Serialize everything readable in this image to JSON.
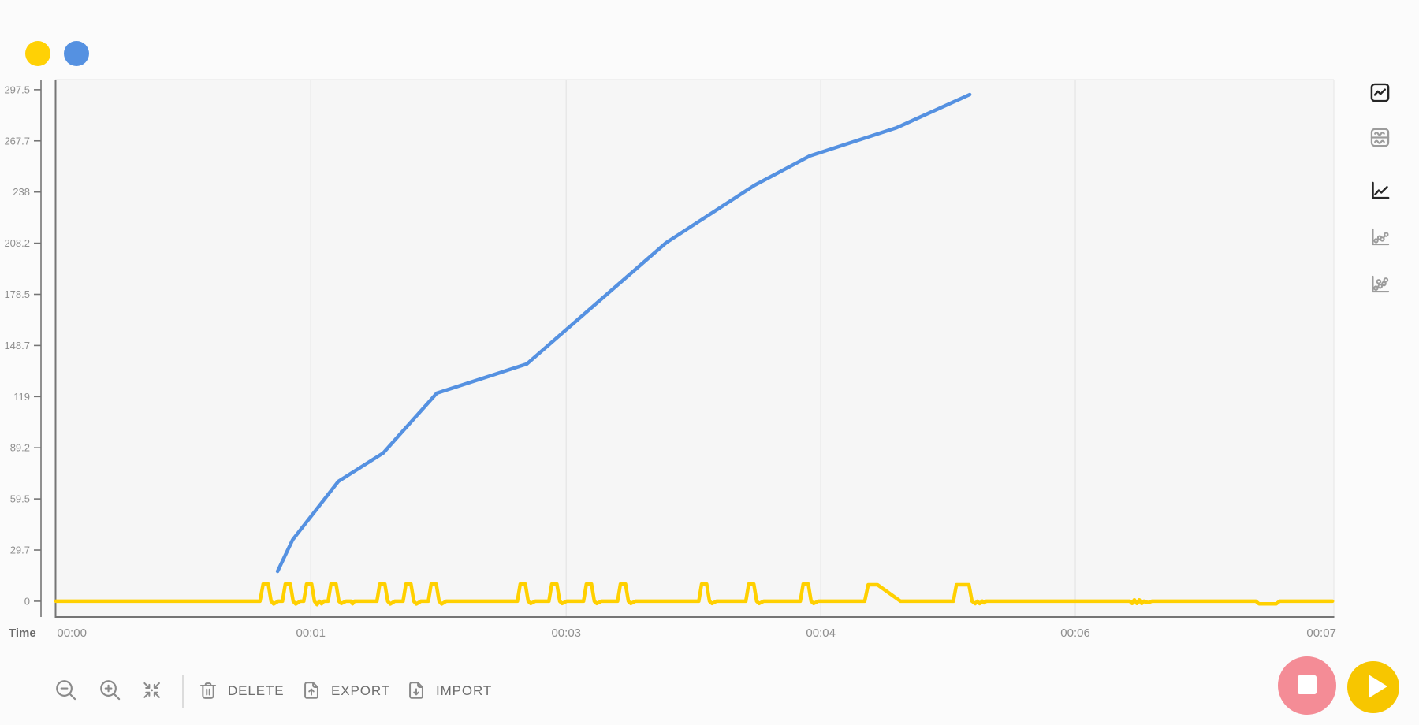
{
  "app": {
    "background": "#fbfbfb",
    "plot_background": "#f6f6f6",
    "gridline_color": "#e8e8e8",
    "axis_dark_color": "#757575",
    "axis_light_color": "#ececec",
    "tick_text_color": "#8e8e8e"
  },
  "legend": {
    "series": [
      {
        "id": "yellow-series",
        "color": "#ffd105"
      },
      {
        "id": "blue-series",
        "color": "#5591e1"
      }
    ]
  },
  "chart_data": {
    "type": "line",
    "title": "",
    "xlabel": "Time",
    "ylabel": "",
    "grid": "vertical-only",
    "x_tick_labels": [
      "00:00",
      "00:01",
      "00:03",
      "00:04",
      "00:06",
      "00:07"
    ],
    "x_tick_t": [
      0,
      84.2,
      174.2,
      263.9,
      353.6,
      440.3
    ],
    "gridline_t": [
      84.2,
      174.2,
      263.9,
      353.6
    ],
    "y_tick_labels": [
      "0",
      "29.7",
      "59.5",
      "89.2",
      "119",
      "148.7",
      "178.5",
      "208.2",
      "238",
      "267.7",
      "297.5"
    ],
    "y_tick_values": [
      0,
      29.75,
      59.5,
      89.25,
      119,
      148.75,
      178.5,
      208.25,
      238,
      267.75,
      297.5
    ],
    "x_range_s": [
      -5.6,
      444.7
    ],
    "y_range": [
      -9.2,
      303.4
    ],
    "series": [
      {
        "name": "yellow-sensor",
        "color": "#ffd000",
        "points": [
          [
            -5.6,
            0
          ],
          [
            66.3,
            0
          ],
          [
            67.4,
            10
          ],
          [
            69.2,
            10
          ],
          [
            70.2,
            0
          ],
          [
            71.1,
            -1.6
          ],
          [
            72.7,
            0
          ],
          [
            74.2,
            0
          ],
          [
            75.2,
            10
          ],
          [
            77.0,
            10
          ],
          [
            78.0,
            0
          ],
          [
            78.9,
            -1.6
          ],
          [
            80.5,
            0
          ],
          [
            81.7,
            0
          ],
          [
            82.7,
            10
          ],
          [
            84.5,
            10
          ],
          [
            85.5,
            0
          ],
          [
            86.4,
            -2
          ],
          [
            87.2,
            0
          ],
          [
            88.0,
            -1.5
          ],
          [
            88.8,
            0
          ],
          [
            90.3,
            0
          ],
          [
            91.3,
            10
          ],
          [
            93.1,
            10
          ],
          [
            94.1,
            0
          ],
          [
            95.0,
            -1.3
          ],
          [
            96.6,
            0
          ],
          [
            98.4,
            0
          ],
          [
            98.9,
            -1.5
          ],
          [
            99.6,
            0
          ],
          [
            107.5,
            0
          ],
          [
            108.5,
            10
          ],
          [
            110.3,
            10
          ],
          [
            111.3,
            0
          ],
          [
            112.2,
            -1.6
          ],
          [
            113.8,
            0
          ],
          [
            116.7,
            0
          ],
          [
            117.7,
            10
          ],
          [
            119.5,
            10
          ],
          [
            120.5,
            0
          ],
          [
            121.4,
            -1.6
          ],
          [
            123.0,
            0
          ],
          [
            125.6,
            0
          ],
          [
            126.6,
            10
          ],
          [
            128.4,
            10
          ],
          [
            129.4,
            0
          ],
          [
            130.3,
            -1.6
          ],
          [
            131.9,
            0
          ],
          [
            157.0,
            0
          ],
          [
            158.0,
            10
          ],
          [
            159.8,
            10
          ],
          [
            160.8,
            0
          ],
          [
            161.7,
            -1.3
          ],
          [
            163.3,
            0
          ],
          [
            168.1,
            0
          ],
          [
            169.1,
            10
          ],
          [
            170.9,
            10
          ],
          [
            171.9,
            0
          ],
          [
            172.8,
            -1.3
          ],
          [
            174.4,
            0
          ],
          [
            180.3,
            0
          ],
          [
            181.3,
            10
          ],
          [
            183.1,
            10
          ],
          [
            184.1,
            0
          ],
          [
            185.0,
            -1.3
          ],
          [
            186.6,
            0
          ],
          [
            192.3,
            0
          ],
          [
            193.3,
            10
          ],
          [
            195.1,
            10
          ],
          [
            196.1,
            0
          ],
          [
            197.0,
            -1.3
          ],
          [
            198.6,
            0
          ],
          [
            220.9,
            0
          ],
          [
            221.9,
            10
          ],
          [
            223.7,
            10
          ],
          [
            224.7,
            0
          ],
          [
            225.6,
            -1.3
          ],
          [
            227.2,
            0
          ],
          [
            237.5,
            0
          ],
          [
            238.5,
            10
          ],
          [
            240.3,
            10
          ],
          [
            241.3,
            0
          ],
          [
            242.2,
            -1.3
          ],
          [
            243.8,
            0
          ],
          [
            256.7,
            0
          ],
          [
            257.7,
            10
          ],
          [
            259.5,
            10
          ],
          [
            260.5,
            0
          ],
          [
            261.4,
            -1.3
          ],
          [
            263.0,
            0
          ],
          [
            279.4,
            0
          ],
          [
            280.6,
            9.6
          ],
          [
            283.9,
            9.6
          ],
          [
            292.0,
            0
          ],
          [
            310.6,
            0
          ],
          [
            311.7,
            9.6
          ],
          [
            316.1,
            9.6
          ],
          [
            317.2,
            0
          ],
          [
            318.3,
            -1.4
          ],
          [
            319.1,
            0
          ],
          [
            319.9,
            -1.4
          ],
          [
            320.8,
            0
          ],
          [
            321.4,
            -0.9
          ],
          [
            322.2,
            0
          ],
          [
            372.8,
            0
          ],
          [
            373.6,
            -1.3
          ],
          [
            374.4,
            0.8
          ],
          [
            375.3,
            -1.3
          ],
          [
            376.1,
            0.8
          ],
          [
            377.0,
            -1.3
          ],
          [
            377.8,
            0
          ],
          [
            379.2,
            -0.8
          ],
          [
            380.6,
            0
          ],
          [
            417.2,
            0
          ],
          [
            418.3,
            -1.5
          ],
          [
            424.4,
            -1.5
          ],
          [
            425.6,
            0
          ],
          [
            444.2,
            0
          ]
        ]
      },
      {
        "name": "blue-sensor",
        "color": "#5591e1",
        "points": [
          [
            72.5,
            17.4
          ],
          [
            77.8,
            35.7
          ],
          [
            93.9,
            69.7
          ],
          [
            109.7,
            86.2
          ],
          [
            128.6,
            121.0
          ],
          [
            160.3,
            138.0
          ],
          [
            209.4,
            208.5
          ],
          [
            240.6,
            242.0
          ],
          [
            260.0,
            259.0
          ],
          [
            290.6,
            275.4
          ],
          [
            316.4,
            294.7
          ]
        ]
      }
    ]
  },
  "view_switcher": {
    "items": [
      {
        "id": "combined-view",
        "icon": "combined-chart-icon",
        "active": true
      },
      {
        "id": "split-view",
        "icon": "split-chart-icon",
        "active": false
      },
      {
        "id": "line-style",
        "icon": "line-chart-icon",
        "active": true
      },
      {
        "id": "line-points-style",
        "icon": "line-points-chart-icon",
        "active": false
      },
      {
        "id": "points-style",
        "icon": "scatter-chart-icon",
        "active": false
      }
    ]
  },
  "toolbar": {
    "zoom_out_icon": "magnifier-minus",
    "zoom_in_icon": "magnifier-plus",
    "fit_icon": "collapse-arrows",
    "buttons": [
      {
        "label": "DELETE",
        "icon": "trash"
      },
      {
        "label": "EXPORT",
        "icon": "document-arrow-up"
      },
      {
        "label": "IMPORT",
        "icon": "document-arrow-down"
      }
    ]
  },
  "transport": {
    "stop_icon": "stop-square",
    "stop_color": "#f48c96",
    "play_icon": "play-triangle",
    "play_color": "#f7c600"
  }
}
